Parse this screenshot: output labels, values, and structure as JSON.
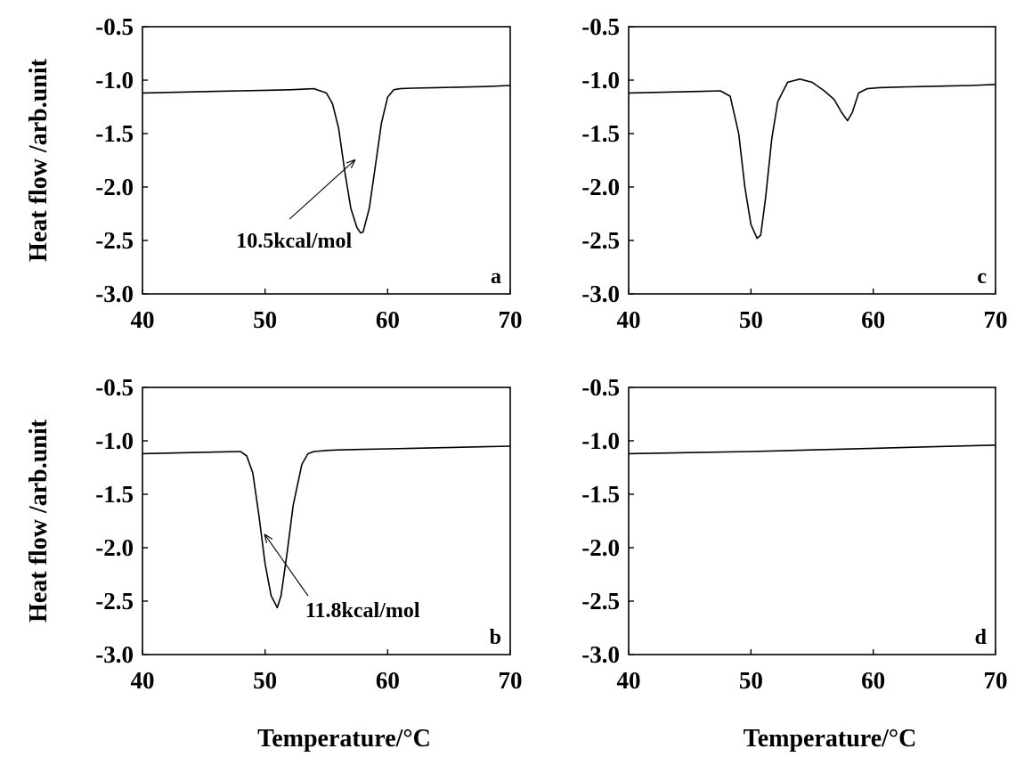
{
  "chart_data": [
    {
      "type": "line",
      "panel_label": "a",
      "xlabel": "",
      "ylabel": "Heat flow /arb.unit",
      "xlim": [
        40,
        70
      ],
      "ylim": [
        -3.0,
        -0.5
      ],
      "xticks": [
        "40",
        "50",
        "60",
        "70"
      ],
      "yticks": [
        "-0.5",
        "-1.0",
        "-1.5",
        "-2.0",
        "-2.5",
        "-3.0"
      ],
      "grid": false,
      "series": [
        {
          "x": [
            40,
            42,
            44,
            46,
            48,
            50,
            52,
            53,
            54,
            55,
            55.5,
            56,
            56.5,
            57,
            57.5,
            57.8,
            58,
            58.5,
            59,
            59.5,
            60,
            60.5,
            61,
            62,
            64,
            66,
            68,
            70
          ],
          "y": [
            -1.12,
            -1.115,
            -1.11,
            -1.105,
            -1.1,
            -1.095,
            -1.09,
            -1.085,
            -1.08,
            -1.12,
            -1.22,
            -1.45,
            -1.85,
            -2.2,
            -2.38,
            -2.43,
            -2.42,
            -2.2,
            -1.8,
            -1.4,
            -1.16,
            -1.09,
            -1.08,
            -1.075,
            -1.07,
            -1.065,
            -1.06,
            -1.05
          ]
        }
      ],
      "annotations": [
        {
          "text": "10.5kcal/mol",
          "arrow_from": [
            52,
            -2.3
          ],
          "arrow_to": [
            57.3,
            -1.75
          ]
        }
      ]
    },
    {
      "type": "line",
      "panel_label": "b",
      "xlabel": "Temperature/°C",
      "ylabel": "Heat flow /arb.unit",
      "xlim": [
        40,
        70
      ],
      "ylim": [
        -3.0,
        -0.5
      ],
      "xticks": [
        "40",
        "50",
        "60",
        "70"
      ],
      "yticks": [
        "-0.5",
        "-1.0",
        "-1.5",
        "-2.0",
        "-2.5",
        "-3.0"
      ],
      "grid": false,
      "series": [
        {
          "x": [
            40,
            42,
            44,
            46,
            48,
            48.5,
            49,
            49.5,
            50,
            50.5,
            51,
            51.3,
            51.8,
            52.3,
            53,
            53.5,
            54,
            55,
            56,
            58,
            60,
            62,
            64,
            66,
            68,
            70
          ],
          "y": [
            -1.12,
            -1.115,
            -1.11,
            -1.105,
            -1.1,
            -1.14,
            -1.3,
            -1.7,
            -2.15,
            -2.45,
            -2.56,
            -2.45,
            -2.05,
            -1.6,
            -1.22,
            -1.12,
            -1.1,
            -1.09,
            -1.085,
            -1.08,
            -1.075,
            -1.07,
            -1.065,
            -1.06,
            -1.055,
            -1.05
          ]
        }
      ],
      "annotations": [
        {
          "text": "11.8kcal/mol",
          "arrow_from": [
            53.5,
            -2.45
          ],
          "arrow_to": [
            50,
            -1.88
          ]
        }
      ]
    },
    {
      "type": "line",
      "panel_label": "c",
      "xlabel": "",
      "ylabel": "",
      "xlim": [
        40,
        70
      ],
      "ylim": [
        -3.0,
        -0.5
      ],
      "xticks": [
        "40",
        "50",
        "60",
        "70"
      ],
      "yticks": [
        "-0.5",
        "-1.0",
        "-1.5",
        "-2.0",
        "-2.5",
        "-3.0"
      ],
      "grid": false,
      "series": [
        {
          "x": [
            40,
            42,
            44,
            46,
            47.5,
            48.3,
            49,
            49.5,
            50,
            50.5,
            50.8,
            51.2,
            51.7,
            52.2,
            53,
            54,
            55,
            56,
            56.8,
            57.4,
            57.9,
            58.3,
            58.8,
            59.5,
            60.5,
            62,
            64,
            66,
            68,
            70
          ],
          "y": [
            -1.12,
            -1.115,
            -1.11,
            -1.105,
            -1.1,
            -1.15,
            -1.5,
            -2.0,
            -2.35,
            -2.48,
            -2.45,
            -2.1,
            -1.55,
            -1.2,
            -1.02,
            -0.99,
            -1.02,
            -1.1,
            -1.18,
            -1.3,
            -1.38,
            -1.3,
            -1.12,
            -1.08,
            -1.07,
            -1.065,
            -1.06,
            -1.055,
            -1.05,
            -1.04
          ]
        }
      ],
      "annotations": []
    },
    {
      "type": "line",
      "panel_label": "d",
      "xlabel": "Temperature/°C",
      "ylabel": "",
      "xlim": [
        40,
        70
      ],
      "ylim": [
        -3.0,
        -0.5
      ],
      "xticks": [
        "40",
        "50",
        "60",
        "70"
      ],
      "yticks": [
        "-0.5",
        "-1.0",
        "-1.5",
        "-2.0",
        "-2.5",
        "-3.0"
      ],
      "grid": false,
      "series": [
        {
          "x": [
            40,
            45,
            50,
            55,
            60,
            65,
            70
          ],
          "y": [
            -1.12,
            -1.11,
            -1.1,
            -1.085,
            -1.07,
            -1.055,
            -1.04
          ]
        }
      ],
      "annotations": []
    }
  ]
}
